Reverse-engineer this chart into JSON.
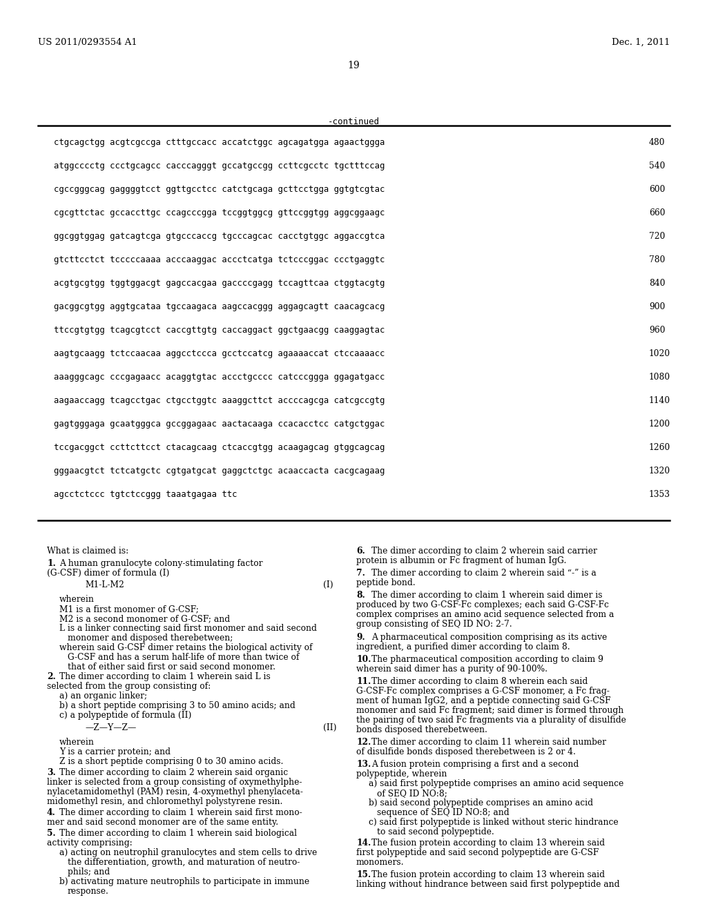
{
  "page_number": "19",
  "left_header": "US 2011/0293554 A1",
  "right_header": "Dec. 1, 2011",
  "continued_label": "-continued",
  "background_color": "#ffffff",
  "seq_lines": [
    {
      "seq": "ctgcagctgg acgtcgccga ctttgccacc accatctggc agcagatgga agaactggga",
      "num": "480"
    },
    {
      "seq": "atggcccctg ccctgcagcc cacccagggt gccatgccgg ccttcgcctc tgctttccag",
      "num": "540"
    },
    {
      "seq": "cgccgggcag gaggggtcct ggttgcctcc catctgcaga gcttcctgga ggtgtcgtac",
      "num": "600"
    },
    {
      "seq": "cgcgttctac gccaccttgc ccagcccgga tccggtggcg gttccggtgg aggcggaagc",
      "num": "660"
    },
    {
      "seq": "ggcggtggag gatcagtcga gtgcccaccg tgcccagcac cacctgtggc aggaccgtca",
      "num": "720"
    },
    {
      "seq": "gtcttcctct tcccccaaaa acccaaggac accctcatga tctcccggac ccctgaggtc",
      "num": "780"
    },
    {
      "seq": "acgtgcgtgg tggtggacgt gagccacgaa gaccccgagg tccagttcaa ctggtacgtg",
      "num": "840"
    },
    {
      "seq": "gacggcgtgg aggtgcataa tgccaagaca aagccacggg aggagcagtt caacagcacg",
      "num": "900"
    },
    {
      "seq": "ttccgtgtgg tcagcgtcct caccgttgtg caccaggact ggctgaacgg caaggagtac",
      "num": "960"
    },
    {
      "seq": "aagtgcaagg tctccaacaa aggcctccca gcctccatcg agaaaaccat ctccaaaacc",
      "num": "1020"
    },
    {
      "seq": "aaagggcagc cccgagaacc acaggtgtac accctgcccc catcccggga ggagatgacc",
      "num": "1080"
    },
    {
      "seq": "aagaaccagg tcagcctgac ctgcctggtc aaaggcttct accccagcga catcgccgtg",
      "num": "1140"
    },
    {
      "seq": "gagtgggaga gcaatgggca gccggagaac aactacaaga ccacacctcc catgctggac",
      "num": "1200"
    },
    {
      "seq": "tccgacggct ccttcttcct ctacagcaag ctcaccgtgg acaagagcag gtggcagcag",
      "num": "1260"
    },
    {
      "seq": "gggaacgtct tctcatgctc cgtgatgcat gaggctctgc acaaccacta cacgcagaag",
      "num": "1320"
    },
    {
      "seq": "agcctctccc tgtctccggg taaatgagaa ttc",
      "num": "1353"
    }
  ]
}
